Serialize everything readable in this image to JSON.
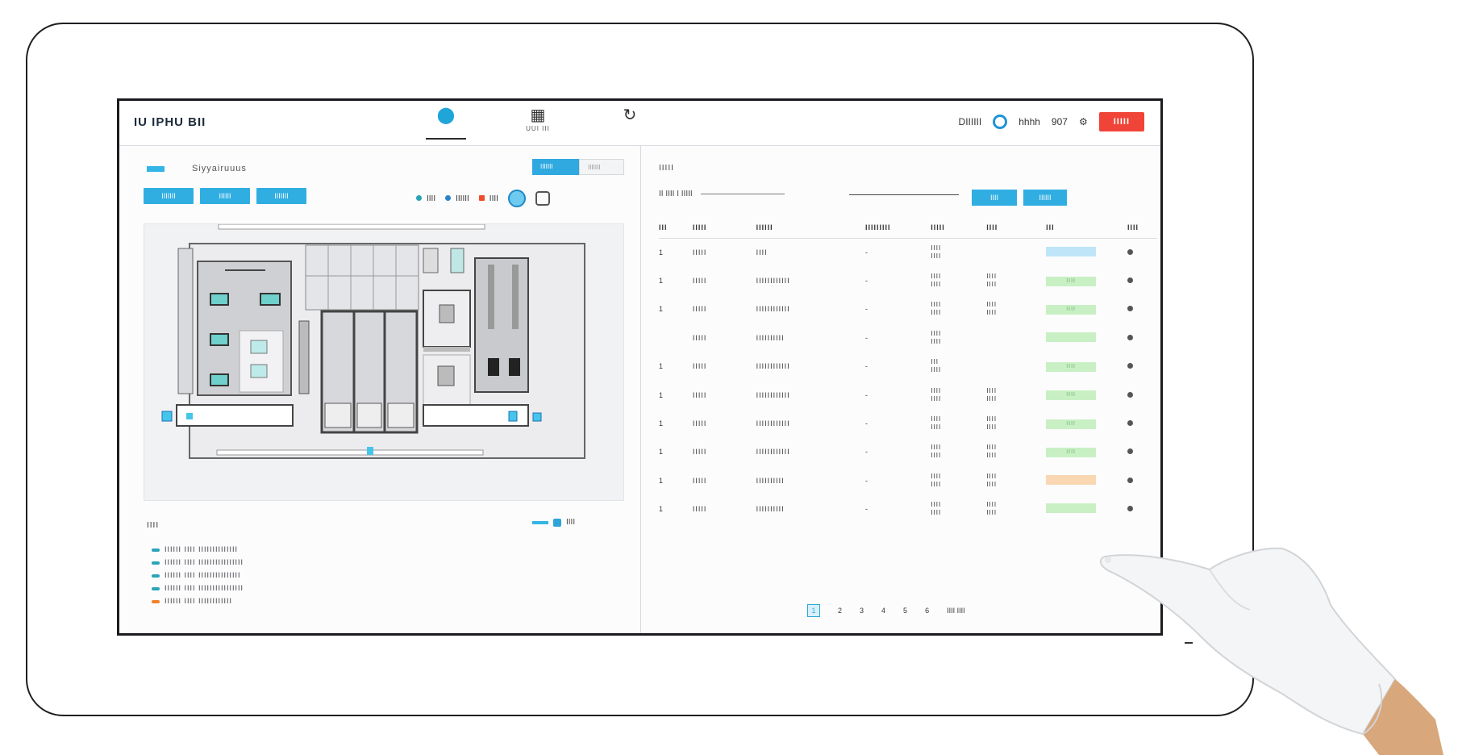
{
  "app": {
    "brand": "IU IPHU BII",
    "nav": [
      {
        "icon": "map-pin-icon",
        "label": "",
        "active": true
      },
      {
        "icon": "building-icon",
        "label": "UUI III",
        "active": false
      },
      {
        "icon": "refresh-icon",
        "label": "",
        "active": false
      }
    ],
    "status_text": "DIIIIII",
    "status_label": "hhhh",
    "status_value": "907",
    "alert_label": "IIIII"
  },
  "left_panel": {
    "title": "Siyyairuuus",
    "toggle": [
      "IIIIIII",
      "IIIIIII"
    ],
    "filters": [
      "IIIIIII",
      "IIIIII",
      "IIIIIII"
    ],
    "legend": [
      {
        "label": "IIII",
        "color": "#29a3b6"
      },
      {
        "label": "IIIIII",
        "color": "#2b83c7"
      },
      {
        "label": "IIII",
        "color": "#f04d2d"
      }
    ],
    "events_title": "IIII",
    "events_paging": "IIII",
    "events": [
      {
        "text": "IIIIII  IIII  IIIIIIIIIIIIII",
        "level": "info"
      },
      {
        "text": "IIIIII  IIII  IIIIIIIIIIIIIIII",
        "level": "info"
      },
      {
        "text": "IIIIII  IIII  IIIIIIIIIIIIIII",
        "level": "info"
      },
      {
        "text": "IIIIII  IIII  IIIIIIIIIIIIIIII",
        "level": "info"
      },
      {
        "text": "IIIIII  IIII  IIIIIIIIIIII",
        "level": "warning"
      }
    ]
  },
  "right_panel": {
    "title": "IIIII",
    "search_text": "II IIII  I  IIIII",
    "buttons": [
      "IIII",
      "IIIIII"
    ],
    "columns": [
      "III",
      "IIIII",
      "IIIIII",
      "IIIIIIIII",
      "IIIII",
      "IIII",
      "III",
      "IIII"
    ],
    "rows": [
      {
        "id": "1",
        "code": "IIIII",
        "name": "IIII",
        "zone": "-",
        "time": "IIII\nIIII",
        "dur": "",
        "state": "",
        "status_color": "blue"
      },
      {
        "id": "1",
        "code": "IIIII",
        "name": "IIIIIIIIIIII",
        "zone": "-",
        "time": "IIII\nIIII",
        "dur": "IIII\nIIII",
        "state": "IIII",
        "status_color": "green"
      },
      {
        "id": "1",
        "code": "IIIII",
        "name": "IIIIIIIIIIII",
        "zone": "-",
        "time": "IIII\nIIII",
        "dur": "IIII\nIIII",
        "state": "IIII",
        "status_color": "green"
      },
      {
        "id": "",
        "code": "IIIII",
        "name": "IIIIIIIIII",
        "zone": "-",
        "time": "IIII\nIIII",
        "dur": "",
        "state": "",
        "status_color": "green"
      },
      {
        "id": "1",
        "code": "IIIII",
        "name": "IIIIIIIIIIII",
        "zone": "-",
        "time": "III\nIIII",
        "dur": "",
        "state": "IIII",
        "status_color": "green"
      },
      {
        "id": "1",
        "code": "IIIII",
        "name": "IIIIIIIIIIII",
        "zone": "-",
        "time": "IIII\nIIII",
        "dur": "IIII\nIIII",
        "state": "IIII",
        "status_color": "green"
      },
      {
        "id": "1",
        "code": "IIIII",
        "name": "IIIIIIIIIIII",
        "zone": "-",
        "time": "IIII\nIIII",
        "dur": "IIII\nIIII",
        "state": "IIII",
        "status_color": "green"
      },
      {
        "id": "1",
        "code": "IIIII",
        "name": "IIIIIIIIIIII",
        "zone": "-",
        "time": "IIII\nIIII",
        "dur": "IIII\nIIII",
        "state": "IIII",
        "status_color": "green"
      },
      {
        "id": "1",
        "code": "IIIII",
        "name": "IIIIIIIIII",
        "zone": "-",
        "time": "IIII\nIIII",
        "dur": "IIII\nIIII",
        "state": "",
        "status_color": "orange"
      },
      {
        "id": "1",
        "code": "IIIII",
        "name": "IIIIIIIIII",
        "zone": "-",
        "time": "IIII\nIIII",
        "dur": "IIII\nIIII",
        "state": "",
        "status_color": "green"
      }
    ],
    "pagination": {
      "current": "1",
      "pages": [
        "2",
        "3",
        "4",
        "5",
        "6"
      ],
      "summary": "IIII IIII"
    }
  },
  "colors": {
    "accent": "#30aee2",
    "alert": "#f04438",
    "ok": "#c9f0c4",
    "warn": "#fad7b3"
  }
}
